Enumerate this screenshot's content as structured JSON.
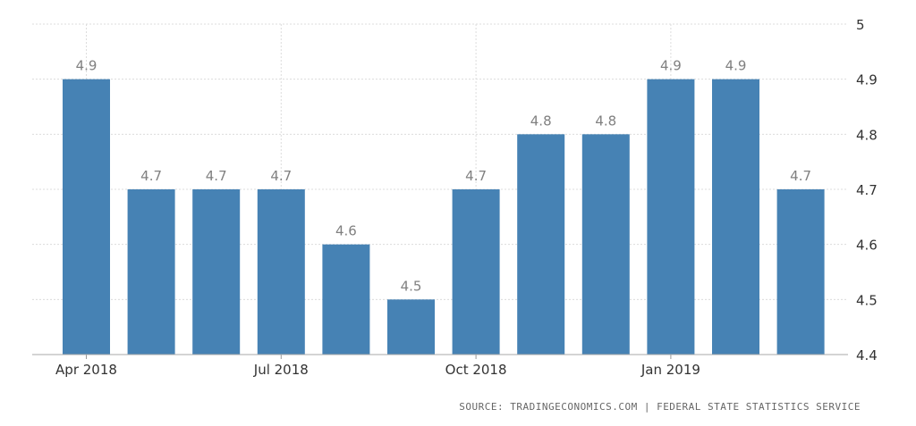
{
  "chart_data": {
    "type": "bar",
    "categories": [
      "Apr 2018",
      "May 2018",
      "Jun 2018",
      "Jul 2018",
      "Aug 2018",
      "Sep 2018",
      "Oct 2018",
      "Nov 2018",
      "Dec 2018",
      "Jan 2019",
      "Feb 2019",
      "Mar 2019"
    ],
    "values": [
      4.9,
      4.7,
      4.7,
      4.7,
      4.6,
      4.5,
      4.7,
      4.8,
      4.8,
      4.9,
      4.9,
      4.7
    ],
    "data_labels": [
      "4.9",
      "4.7",
      "4.7",
      "4.7",
      "4.6",
      "4.5",
      "4.7",
      "4.8",
      "4.8",
      "4.9",
      "4.9",
      "4.7"
    ],
    "x_tick_labels": [
      "Apr 2018",
      "Jul 2018",
      "Oct 2018",
      "Jan 2019"
    ],
    "y_ticks": [
      4.4,
      4.5,
      4.6,
      4.7,
      4.8,
      4.9,
      5
    ],
    "y_tick_labels": [
      "4.4",
      "4.5",
      "4.6",
      "4.7",
      "4.8",
      "4.9",
      "5"
    ],
    "ylim": [
      4.4,
      5
    ],
    "y_axis_side": "right",
    "grid": true,
    "legend": "none",
    "bar_color": "#4682b4",
    "label_color": "#808080"
  },
  "source_text": "SOURCE: TRADINGECONOMICS.COM  |  FEDERAL STATE STATISTICS SERVICE"
}
